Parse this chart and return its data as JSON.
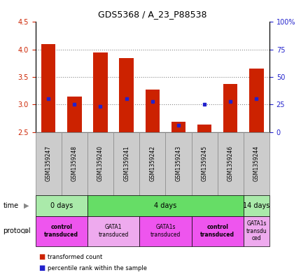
{
  "title": "GDS5368 / A_23_P88538",
  "samples": [
    "GSM1359247",
    "GSM1359248",
    "GSM1359240",
    "GSM1359241",
    "GSM1359242",
    "GSM1359243",
    "GSM1359245",
    "GSM1359246",
    "GSM1359244"
  ],
  "bar_bottoms": [
    2.5,
    2.5,
    2.5,
    2.5,
    2.5,
    2.5,
    2.5,
    2.5,
    2.5
  ],
  "bar_tops": [
    4.1,
    3.15,
    3.95,
    3.85,
    3.27,
    2.68,
    2.63,
    3.37,
    3.65
  ],
  "blue_dots_pct": [
    30,
    25,
    23,
    30,
    28,
    6,
    25,
    28,
    30
  ],
  "ylim": [
    2.5,
    4.5
  ],
  "y2lim": [
    0,
    100
  ],
  "yticks": [
    2.5,
    3.0,
    3.5,
    4.0,
    4.5
  ],
  "y2ticks": [
    0,
    25,
    50,
    75,
    100
  ],
  "y2tick_labels": [
    "0",
    "25",
    "50",
    "75",
    "100%"
  ],
  "bar_color": "#cc2200",
  "dot_color": "#2222cc",
  "time_groups": [
    {
      "label": "0 days",
      "start": 0,
      "end": 2,
      "color": "#aaeaaa"
    },
    {
      "label": "4 days",
      "start": 2,
      "end": 8,
      "color": "#66dd66"
    },
    {
      "label": "14 days",
      "start": 8,
      "end": 9,
      "color": "#aaeaaa"
    }
  ],
  "protocol_groups": [
    {
      "label": "control\ntransduced",
      "start": 0,
      "end": 2,
      "color": "#ee55ee",
      "bold": true
    },
    {
      "label": "GATA1\ntransduced",
      "start": 2,
      "end": 4,
      "color": "#eeaaee",
      "bold": false
    },
    {
      "label": "GATA1s\ntransduced",
      "start": 4,
      "end": 6,
      "color": "#ee55ee",
      "bold": false
    },
    {
      "label": "control\ntransduced",
      "start": 6,
      "end": 8,
      "color": "#ee55ee",
      "bold": true
    },
    {
      "label": "GATA1s\ntransdu\nced",
      "start": 8,
      "end": 9,
      "color": "#eeaaee",
      "bold": false
    }
  ],
  "legend_bar_label": "transformed count",
  "legend_dot_label": "percentile rank within the sample",
  "gridline_color": "#888888",
  "plot_bg": "#ffffff",
  "axis_color_left": "#cc2200",
  "axis_color_right": "#2222cc",
  "sample_box_color": "#cccccc",
  "sample_box_edge": "#888888"
}
